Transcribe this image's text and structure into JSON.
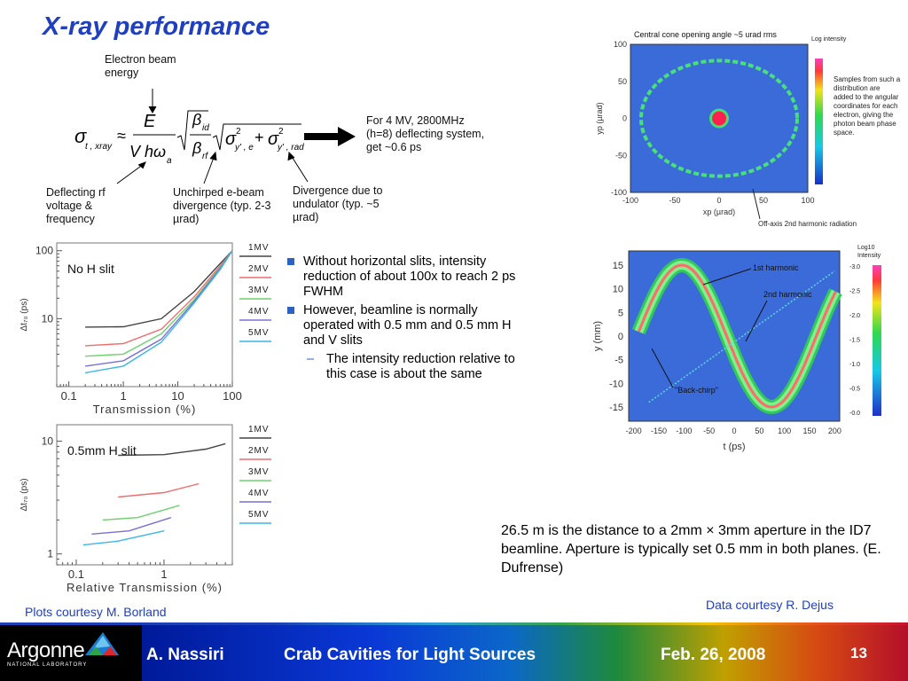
{
  "slide": {
    "title": "X-ray performance",
    "page_number": "13"
  },
  "equation": {
    "label_energy": "Electron beam energy",
    "arrow_text": "For 4 MV, 2800MHz (h=8) deflecting system, get ~0.6 ps",
    "label_deflecting": "Deflecting rf voltage & frequency",
    "label_unchirped": "Unchirped e-beam divergence (typ. 2-3 µrad)",
    "label_divergence": "Divergence due to undulator (typ. ~5 µrad)"
  },
  "bullets": [
    "Without horizontal slits, intensity reduction of about 100x to reach 2 ps FWHM",
    "However, beamline is normally operated with 0.5 mm and 0.5 mm H and V slits"
  ],
  "sub_bullet": "The intensity reduction relative to this case is about the same",
  "captions": {
    "left": "Plots courtesy M. Borland",
    "right": "Data courtesy R. Dejus"
  },
  "note": "26.5 m is the distance to a 2mm × 3mm aperture in the ID7 beamline. Aperture is typically set 0.5 mm in both planes. (E. Dufrense)",
  "footer": {
    "logo_text": "Argonne",
    "logo_sub": "NATIONAL LABORATORY",
    "author": "A. Nassiri",
    "talk_title": "Crab Cavities for Light Sources",
    "date": "Feb. 26, 2008"
  },
  "colors": {
    "title": "#1f3fbf",
    "bullet": "#2b62c4",
    "series_1MV": "#444444",
    "series_2MV": "#ef6d6d",
    "series_3MV": "#6fd06f",
    "series_4MV": "#7a6fd6",
    "series_5MV": "#39b6ea",
    "plot_background": "#3a6bd8"
  },
  "chart_data": [
    {
      "type": "line",
      "title": "No H slit",
      "xlabel": "Transmission (%)",
      "ylabel": "Δt₇₀ (ps)",
      "xscale": "log",
      "yscale": "log",
      "xlim": [
        0.06,
        100
      ],
      "ylim": [
        1,
        130
      ],
      "x_ticks": [
        "0.1",
        "1",
        "10",
        "100"
      ],
      "y_ticks": [
        "10",
        "100"
      ],
      "legend_position": "right",
      "series": [
        {
          "name": "1MV",
          "x": [
            0.2,
            1,
            5,
            20,
            60,
            100
          ],
          "y": [
            7.5,
            7.6,
            10,
            25,
            65,
            100
          ]
        },
        {
          "name": "2MV",
          "x": [
            0.2,
            1,
            5,
            20,
            60,
            100
          ],
          "y": [
            4,
            4.3,
            7,
            21,
            60,
            100
          ]
        },
        {
          "name": "3MV",
          "x": [
            0.2,
            1,
            5,
            20,
            60,
            100
          ],
          "y": [
            2.8,
            3,
            6,
            19,
            57,
            100
          ]
        },
        {
          "name": "4MV",
          "x": [
            0.2,
            1,
            5,
            20,
            60,
            100
          ],
          "y": [
            2,
            2.4,
            5,
            18,
            55,
            100
          ]
        },
        {
          "name": "5MV",
          "x": [
            0.2,
            1,
            5,
            20,
            60,
            100
          ],
          "y": [
            1.6,
            2,
            4.5,
            17,
            53,
            100
          ]
        }
      ]
    },
    {
      "type": "line",
      "title": "0.5mm H slit",
      "xlabel": "Relative Transmission (%)",
      "ylabel": "Δt₇₀ (ps)",
      "xscale": "log",
      "yscale": "log",
      "xlim": [
        0.06,
        6
      ],
      "ylim": [
        0.8,
        14
      ],
      "x_ticks": [
        "0.1",
        "1"
      ],
      "y_ticks": [
        "1",
        "10"
      ],
      "legend_position": "right",
      "series": [
        {
          "name": "1MV",
          "x": [
            0.3,
            1,
            3,
            5
          ],
          "y": [
            7.5,
            7.6,
            8.5,
            9.5
          ]
        },
        {
          "name": "2MV",
          "x": [
            0.3,
            1,
            2.5
          ],
          "y": [
            3.2,
            3.5,
            4.2
          ]
        },
        {
          "name": "3MV",
          "x": [
            0.2,
            0.5,
            1.5
          ],
          "y": [
            2.0,
            2.1,
            2.7
          ]
        },
        {
          "name": "4MV",
          "x": [
            0.15,
            0.4,
            1.2
          ],
          "y": [
            1.5,
            1.6,
            2.1
          ]
        },
        {
          "name": "5MV",
          "x": [
            0.12,
            0.3,
            1
          ],
          "y": [
            1.2,
            1.3,
            1.6
          ]
        }
      ]
    },
    {
      "type": "heatmap",
      "title": "Central cone opening angle ~5 urad rms",
      "xlabel": "xp (µrad)",
      "ylabel": "yp (µrad)",
      "xlim": [
        -100,
        100
      ],
      "ylim": [
        -100,
        100
      ],
      "x_ticks": [
        "-100",
        "-50",
        "0",
        "50",
        "100"
      ],
      "y_ticks": [
        "100",
        "50",
        "0",
        "-50",
        "-100"
      ],
      "colorbar_label": "Log intensity",
      "annotation_side": "Samples from such a distribution are added to the angular coordinates for each electron, giving the photon beam phase space.",
      "annotation_bottom": "Off-axis 2nd harmonic radiation",
      "features": {
        "center_spot_radius_urad": 9,
        "ring_radius_x_urad": 88,
        "ring_radius_y_urad": 78
      }
    },
    {
      "type": "heatmap",
      "xlabel": "t (ps)",
      "ylabel": "y (mm)",
      "xlim": [
        -210,
        210
      ],
      "ylim": [
        -18,
        18
      ],
      "x_ticks": [
        "-200",
        "-150",
        "-100",
        "-50",
        "0",
        "50",
        "100",
        "150",
        "200"
      ],
      "y_ticks": [
        "15",
        "10",
        "5",
        "0",
        "-5",
        "-10",
        "-15"
      ],
      "colorbar_label": "Log10 Intensity",
      "colorbar_ticks": [
        "-3.0",
        "-2.5",
        "-2.0",
        "-1.5",
        "-1.0",
        "-0.5",
        "-0.0"
      ],
      "annotations": [
        "1st harmonic",
        "2nd harmonic",
        "\"Back-chirp\""
      ],
      "sine_curve": {
        "amplitude_mm": 15,
        "period_ps": 357,
        "phase_zero_ps": -15
      }
    }
  ]
}
